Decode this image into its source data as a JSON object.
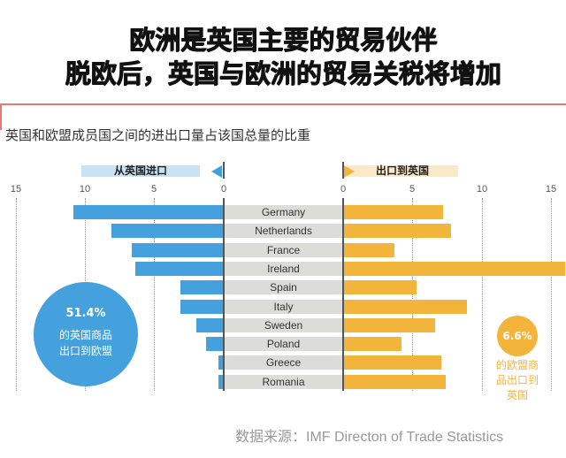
{
  "header": {
    "title_line1": "欧洲是英国主要的贸易伙伴",
    "title_line2": "脱欧后，英国与欧洲的贸易关税将增加"
  },
  "chart": {
    "subtitle": "英国和欧盟成员国之间的进出口量占该国总量的比重",
    "legend_left": "从英国进口",
    "legend_right": "出口到英国",
    "left_ticks": [
      "15",
      "10",
      "5",
      "0"
    ],
    "right_ticks": [
      "0",
      "5",
      "10",
      "15"
    ],
    "countries": [
      "Germany",
      "Netherlands",
      "France",
      "Ireland",
      "Spain",
      "Italy",
      "Sweden",
      "Poland",
      "Greece",
      "Romania"
    ],
    "callout_uk": {
      "value": "51.4%",
      "line1": "的英国商品",
      "line2": "出口到欧盟"
    },
    "callout_eu": {
      "value": "6.6%",
      "line1": "的欧盟商",
      "line2": "品出口到",
      "line3": "英国"
    },
    "source": "数据来源：IMF Directon of Trade Statistics"
  },
  "colors": {
    "import_bar": "#45a0de",
    "export_bar": "#f3b43c",
    "label_bg": "#dcdcd8",
    "accent_line": "#e87a72"
  },
  "chart_data": {
    "type": "bar",
    "orientation": "horizontal-diverging",
    "title": "英国和欧盟成员国之间的进出口量占该国总量的比重",
    "categories": [
      "Germany",
      "Netherlands",
      "France",
      "Ireland",
      "Spain",
      "Italy",
      "Sweden",
      "Poland",
      "Greece",
      "Romania"
    ],
    "series": [
      {
        "name": "从英国进口",
        "side": "left",
        "color": "#45a0de",
        "values": [
          10.8,
          8.1,
          6.6,
          6.4,
          3.1,
          3.1,
          2.0,
          1.3,
          0.4,
          0.4
        ]
      },
      {
        "name": "出口到英国",
        "side": "right",
        "color": "#f3b43c",
        "values": [
          7.2,
          7.8,
          3.7,
          16.0,
          5.3,
          8.9,
          6.6,
          4.2,
          7.1,
          7.4
        ]
      }
    ],
    "xlim_left": [
      15,
      0
    ],
    "xlim_right": [
      0,
      15
    ],
    "xticks": [
      0,
      5,
      10,
      15
    ],
    "grid": "dotted vertical at 5,10,15",
    "annotations": [
      "51.4% 的英国商品出口到欧盟",
      "6.6% 的欧盟商品出口到英国"
    ],
    "source": "数据来源：IMF Directon of Trade Statistics"
  }
}
